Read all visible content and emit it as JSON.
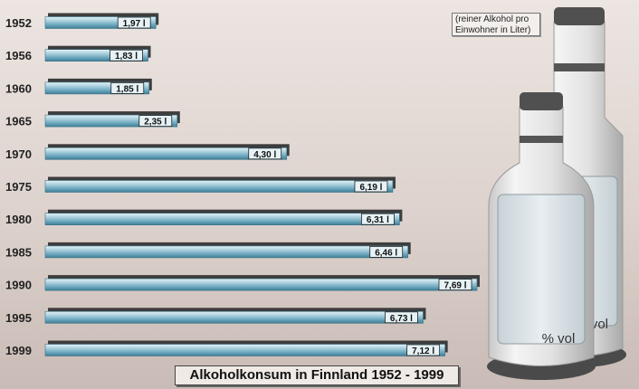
{
  "chart_data": {
    "type": "bar",
    "orientation": "horizontal",
    "title": "Alkoholkonsum in Finnland 1952 - 1999",
    "note": "(reiner Alkohol pro Einwohner in Liter)",
    "unit": "l",
    "categories": [
      "1952",
      "1956",
      "1960",
      "1965",
      "1970",
      "1975",
      "1980",
      "1985",
      "1990",
      "1995",
      "1999"
    ],
    "values": [
      1.97,
      1.83,
      1.85,
      2.35,
      4.3,
      6.19,
      6.31,
      6.46,
      7.69,
      6.73,
      7.12
    ],
    "value_labels": [
      "1,97 l",
      "1,83 l",
      "1,85 l",
      "2,35 l",
      "4,30 l",
      "6,19 l",
      "6,31 l",
      "6,46 l",
      "7,69 l",
      "6,73 l",
      "7,12 l"
    ],
    "xlim": [
      0,
      7.69
    ],
    "grid": false,
    "legend": "none"
  },
  "illustration": {
    "bottle_label": "% vol",
    "bottle_label_rear": "% vol"
  },
  "colors": {
    "bar": "#6aa6bd",
    "bar_highlight": "#d9eef5",
    "bar_shadow": "#3d3d3d",
    "background": "#ddd2cd"
  }
}
